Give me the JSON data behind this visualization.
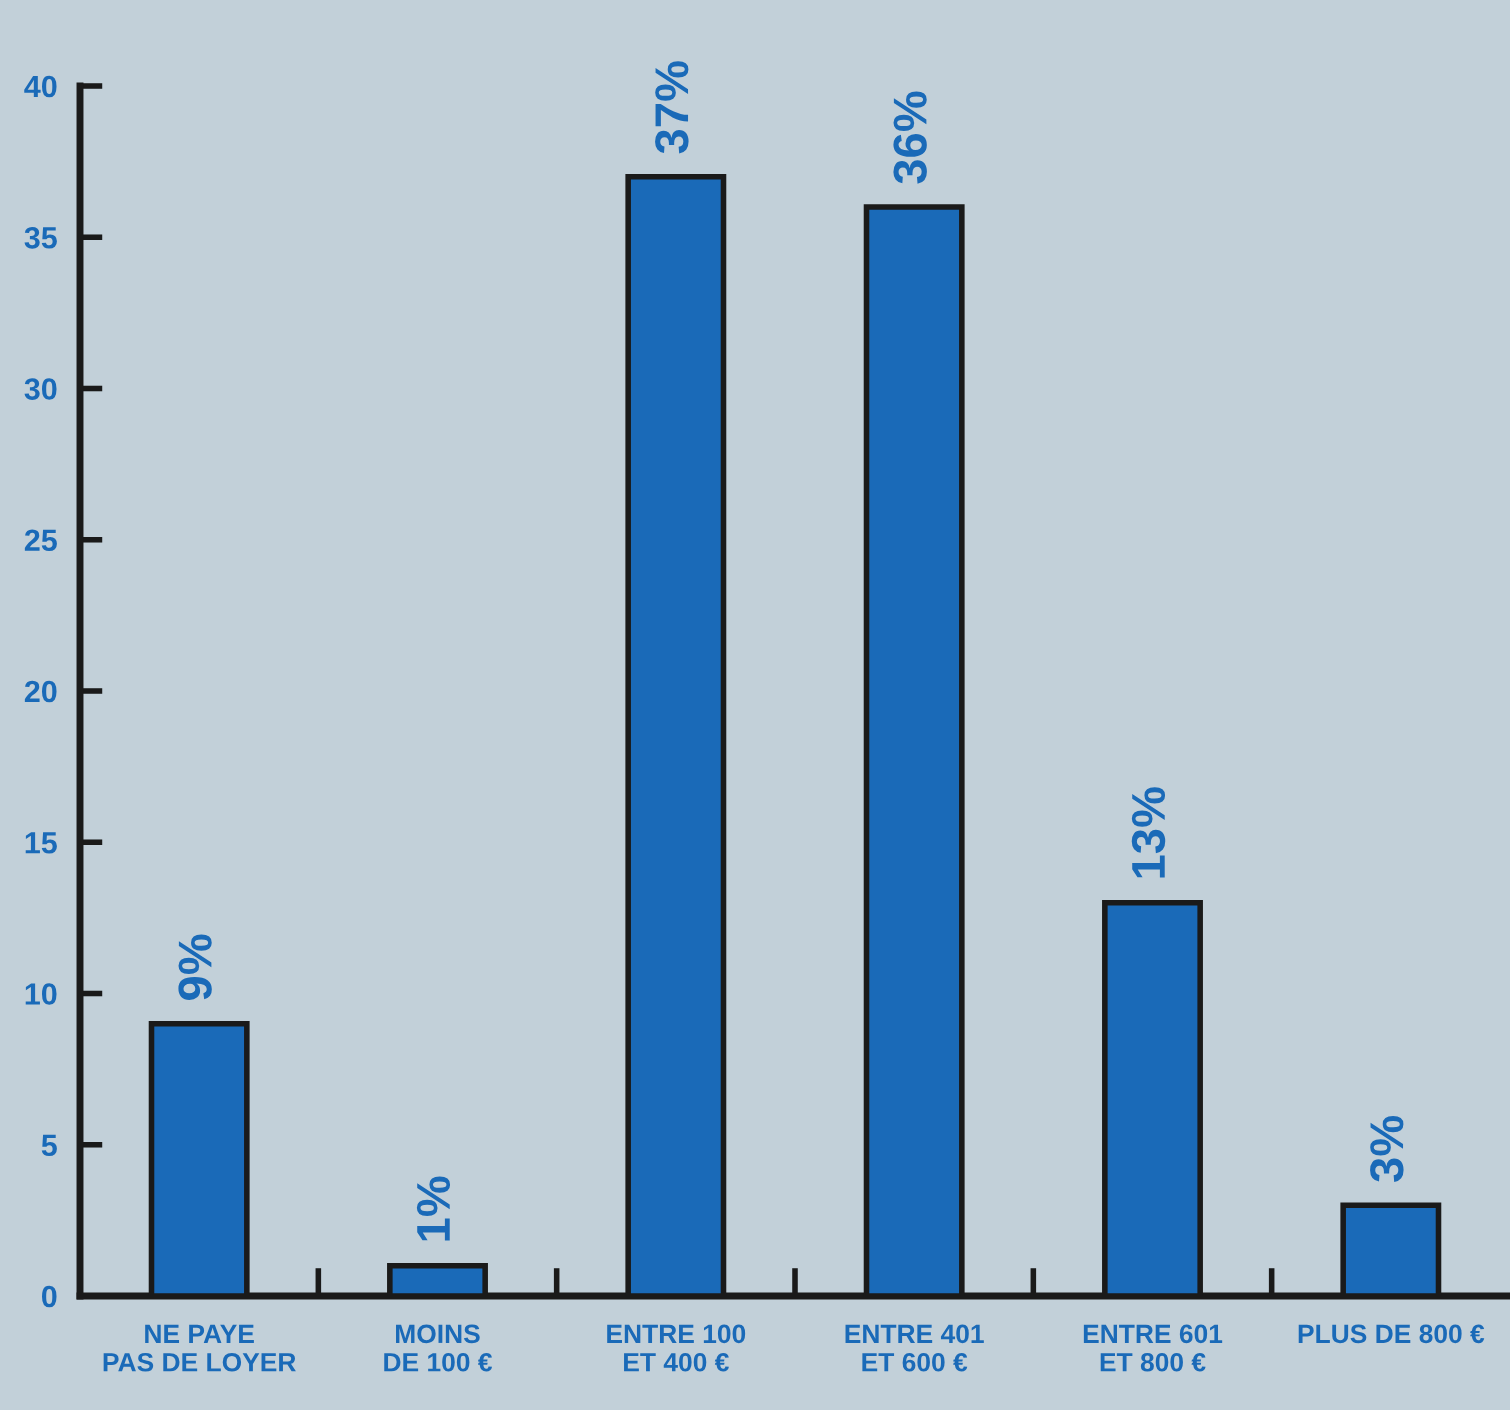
{
  "chart_data": {
    "type": "bar",
    "categories": [
      "NE PAYE\nPAS DE LOYER",
      "MOINS\nDE 100 €",
      "ENTRE 100\nET 400 €",
      "ENTRE 401\nET 600 €",
      "ENTRE 601\nET 800 €",
      "PLUS DE 800 €"
    ],
    "values": [
      9,
      1,
      37,
      36,
      13,
      3
    ],
    "value_labels": [
      "9%",
      "1%",
      "37%",
      "36%",
      "13%",
      "3%"
    ],
    "color": "#1a6ab8",
    "ylim": [
      0,
      40
    ],
    "yticks": [
      0,
      5,
      10,
      15,
      20,
      25,
      30,
      35,
      40
    ],
    "grid": false,
    "legend": false
  }
}
